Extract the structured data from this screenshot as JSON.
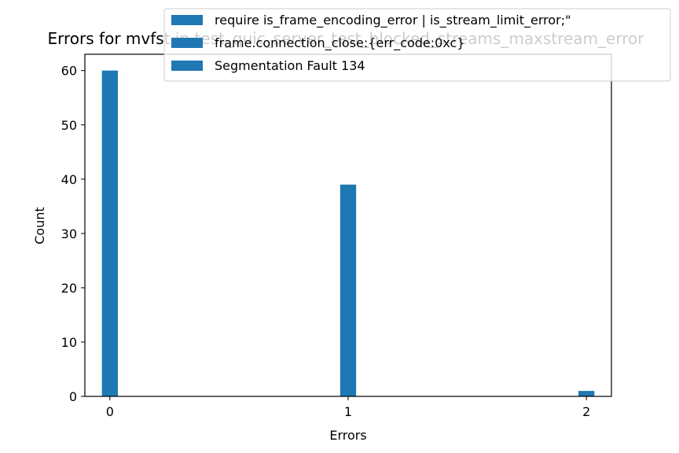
{
  "chart_data": {
    "type": "bar",
    "title": "Errors for mvfst in test_quic_server_test_blocked_streams_maxstream_error",
    "xlabel": "Errors",
    "ylabel": "Count",
    "xlim": [
      -0.105,
      2.105
    ],
    "ylim": [
      0,
      63
    ],
    "xticks": [
      "0",
      "1",
      "2"
    ],
    "yticks": [
      "0",
      "10",
      "20",
      "30",
      "40",
      "50",
      "60"
    ],
    "bar_width": 0.067,
    "bar_color": "#1f77b4",
    "legend_position": "top-right",
    "series": [
      {
        "name": "require is_frame_encoding_error | is_stream_limit_error;\"",
        "x": 0,
        "value": 60
      },
      {
        "name": "frame.connection_close:{err_code:0xc}",
        "x": 1,
        "value": 39
      },
      {
        "name": "Segmentation Fault 134",
        "x": 2,
        "value": 1
      }
    ]
  }
}
